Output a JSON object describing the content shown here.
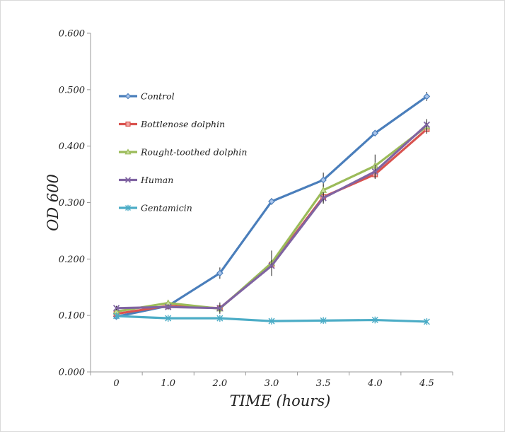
{
  "chart_data": {
    "type": "line",
    "title": "",
    "xlabel": "TIME (hours)",
    "ylabel": "OD 600",
    "categories": [
      "0",
      "1.0",
      "2.0",
      "3.0",
      "3.5",
      "4.0",
      "4.5"
    ],
    "ylim": [
      0,
      0.6
    ],
    "yticks": [
      "0.000",
      "0.100",
      "0.200",
      "0.300",
      "0.400",
      "0.500",
      "0.600"
    ],
    "grid": false,
    "legend_position": "upper-left",
    "series": [
      {
        "name": "Control",
        "color": "#4a7ebb",
        "marker": "diamond",
        "values": [
          0.098,
          0.117,
          0.175,
          0.302,
          0.34,
          0.423,
          0.488
        ],
        "errors": [
          0.004,
          0.004,
          0.01,
          0.006,
          0.013,
          0.005,
          0.008
        ]
      },
      {
        "name": "Bottlenose dolphin",
        "color": "#d9534f",
        "marker": "square",
        "values": [
          0.103,
          0.117,
          0.113,
          0.19,
          0.31,
          0.35,
          0.43
        ],
        "errors": [
          0.004,
          0.005,
          0.01,
          0.02,
          0.01,
          0.008,
          0.008
        ]
      },
      {
        "name": "Rought-toothed dolphin",
        "color": "#9bbb59",
        "marker": "triangle",
        "values": [
          0.107,
          0.122,
          0.112,
          0.193,
          0.322,
          0.365,
          0.435
        ],
        "errors": [
          0.004,
          0.005,
          0.006,
          0.022,
          0.01,
          0.02,
          0.01
        ]
      },
      {
        "name": "Human",
        "color": "#8064a2",
        "marker": "x",
        "values": [
          0.113,
          0.115,
          0.113,
          0.188,
          0.308,
          0.355,
          0.438
        ],
        "errors": [
          0.004,
          0.005,
          0.006,
          0.015,
          0.01,
          0.012,
          0.01
        ]
      },
      {
        "name": "Gentamicin",
        "color": "#4bacc6",
        "marker": "star",
        "values": [
          0.099,
          0.095,
          0.095,
          0.09,
          0.091,
          0.092,
          0.089
        ],
        "errors": [
          0.002,
          0.002,
          0.002,
          0.002,
          0.002,
          0.002,
          0.002
        ]
      }
    ]
  }
}
